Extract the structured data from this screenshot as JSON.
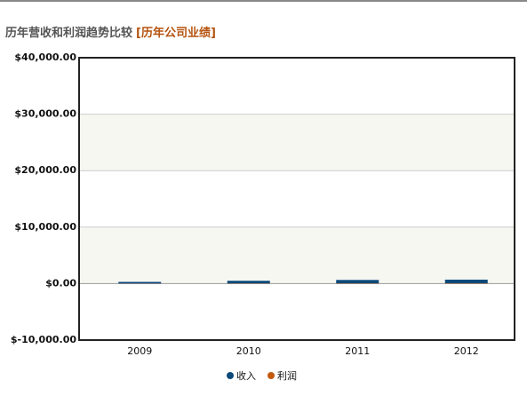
{
  "chart_data": {
    "type": "bar",
    "title": "历年营收和利润趋势比较",
    "title_link": "[历年公司业绩]",
    "categories": [
      "2009",
      "2010",
      "2011",
      "2012"
    ],
    "series": [
      {
        "name": "收入",
        "color": "#0d4a7a",
        "values": [
          300,
          500,
          650,
          700
        ]
      },
      {
        "name": "利润",
        "color": "#c35a0c",
        "values": [
          20,
          40,
          50,
          60
        ]
      }
    ],
    "ylim": [
      -10000,
      40000
    ],
    "yticks": [
      {
        "value": -10000,
        "label": "$-10,000.00"
      },
      {
        "value": 0,
        "label": "$0.00"
      },
      {
        "value": 10000,
        "label": "$10,000.00"
      },
      {
        "value": 20000,
        "label": "$20,000.00"
      },
      {
        "value": 30000,
        "label": "$30,000.00"
      },
      {
        "value": 40000,
        "label": "$40,000.00"
      }
    ],
    "grid": true
  }
}
